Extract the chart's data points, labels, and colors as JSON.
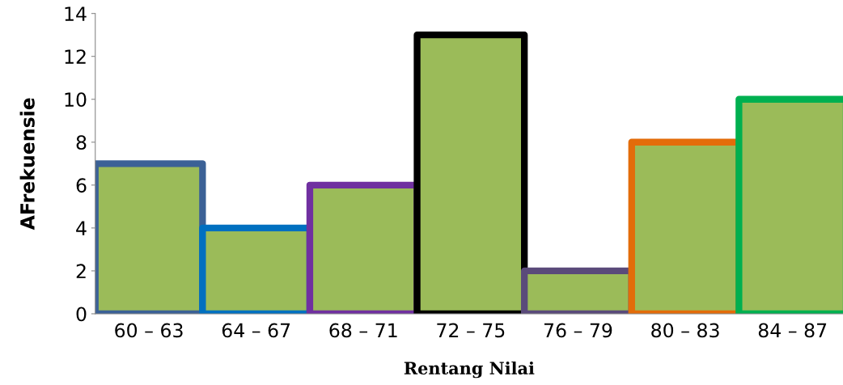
{
  "chart_data": {
    "type": "bar",
    "xlabel": "Rentang Nilai",
    "ylabel": "AFrekuensie",
    "categories": [
      "60 – 63",
      "64 – 67",
      "68 – 71",
      "72 – 75",
      "76 – 79",
      "80 – 83",
      "84 – 87"
    ],
    "values": [
      7,
      4,
      6,
      13,
      2,
      8,
      10
    ],
    "color": "#9bbb59",
    "colors": [
      "#3b6196",
      "#0070c0",
      "#7030a0",
      "#000000",
      "#5a4a7a",
      "#e36c0a",
      "#00b050"
    ],
    "ylim": [
      0,
      14
    ],
    "yticks": [
      0,
      2,
      4,
      6,
      8,
      10,
      12,
      14
    ],
    "grid": false,
    "legend": false
  }
}
